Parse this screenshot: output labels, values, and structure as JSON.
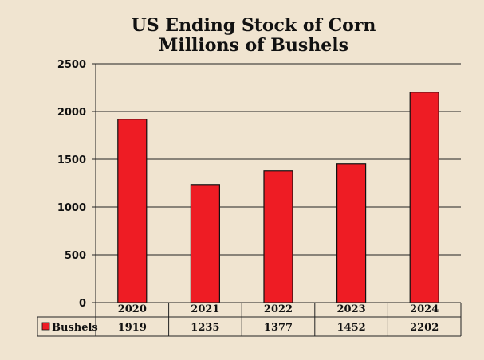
{
  "chart_data": {
    "type": "bar",
    "title": "US Ending Stock of Corn",
    "subtitle": "Millions of Bushels",
    "categories": [
      "2020",
      "2021",
      "2022",
      "2023",
      "2024"
    ],
    "series": [
      {
        "name": "Bushels",
        "values": [
          1919,
          1235,
          1377,
          1452,
          2202
        ],
        "color": "#ee1c24"
      }
    ],
    "value_labels": [
      "1919",
      "1235",
      "1377",
      "1452",
      "2202"
    ],
    "ylim": [
      0,
      2500
    ],
    "yticks": [
      0,
      500,
      1000,
      1500,
      2000,
      2500
    ],
    "ytick_labels": [
      "0",
      "500",
      "1000",
      "1500",
      "2000",
      "2500"
    ],
    "grid": true,
    "data_table": true,
    "background": "#f0e4d0"
  }
}
